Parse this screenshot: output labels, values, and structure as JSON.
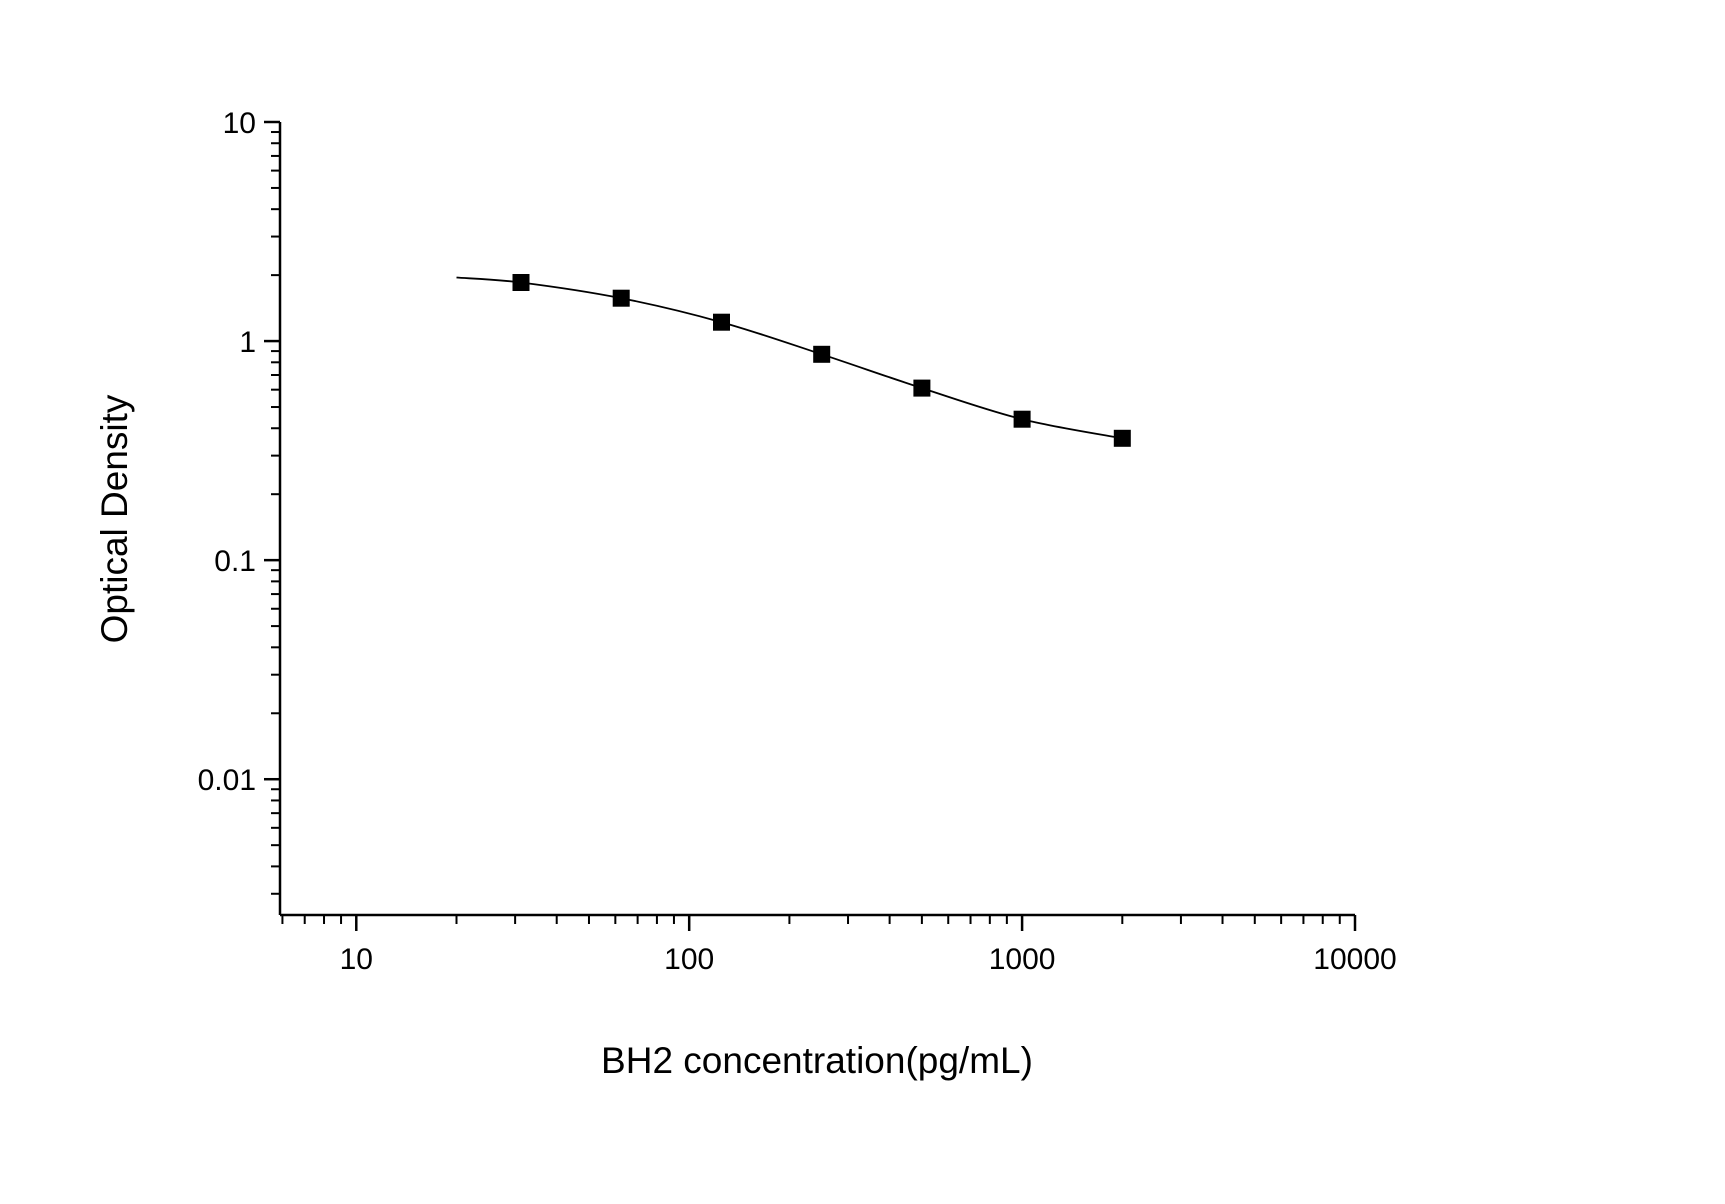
{
  "chart_data": {
    "type": "scatter",
    "title": "",
    "xlabel": "BH2 concentration(pg/mL)",
    "ylabel": "Optical Density",
    "x_scale": "log",
    "y_scale": "log",
    "x": [
      31.25,
      62.5,
      125,
      250,
      500,
      1000,
      2000
    ],
    "y": [
      1.85,
      1.57,
      1.22,
      0.87,
      0.61,
      0.44,
      0.36
    ],
    "fit_curve": [
      [
        20,
        1.95
      ],
      [
        31.25,
        1.85
      ],
      [
        62.5,
        1.57
      ],
      [
        125,
        1.22
      ],
      [
        250,
        0.87
      ],
      [
        500,
        0.61
      ],
      [
        1000,
        0.44
      ],
      [
        2000,
        0.36
      ]
    ],
    "x_major_ticks": [
      10,
      100,
      1000,
      10000
    ],
    "x_tick_labels": [
      "10",
      "100",
      "1000",
      "10000"
    ],
    "y_major_ticks": [
      0.01,
      0.1,
      1,
      10
    ],
    "y_tick_labels": [
      "0.01",
      "0.1",
      "1",
      "10"
    ],
    "xlim": [
      5.9,
      10000
    ],
    "ylim": [
      0.0024,
      10
    ],
    "grid": false,
    "legend": false,
    "marker": "filled-square",
    "marker_color": "#000000",
    "line_color": "#000000",
    "background_color": "#ffffff"
  }
}
